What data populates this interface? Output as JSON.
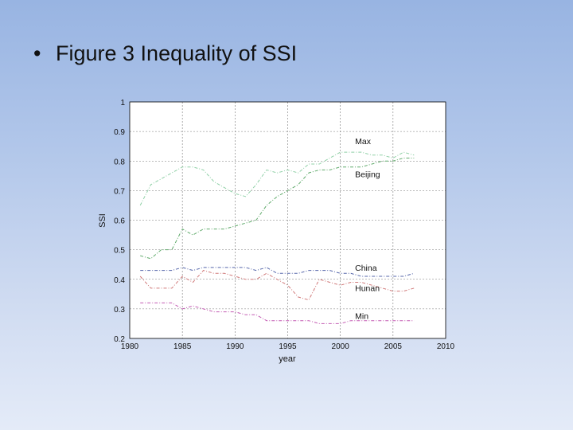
{
  "slide": {
    "bullet": "•",
    "title": "Figure 3 Inequality of SSI"
  },
  "chart_data": {
    "type": "line",
    "title": "",
    "xlabel": "year",
    "ylabel": "SSI",
    "xlim": [
      1980,
      2010
    ],
    "ylim": [
      0.2,
      1.0
    ],
    "xticks": [
      1980,
      1985,
      1990,
      1995,
      2000,
      2005,
      2010
    ],
    "yticks": [
      0.2,
      0.3,
      0.4,
      0.5,
      0.6,
      0.7,
      0.8,
      0.9,
      1.0
    ],
    "ytick_labels": [
      "0.2",
      "0.3",
      "0.4",
      "0.5",
      "0.6",
      "0.7",
      "0.8",
      "0.9",
      "1"
    ],
    "grid": true,
    "series": [
      {
        "name": "Max",
        "color": "#8fd0a6",
        "x": [
          1981,
          1982,
          1983,
          1984,
          1985,
          1986,
          1987,
          1988,
          1989,
          1990,
          1991,
          1992,
          1993,
          1994,
          1995,
          1996,
          1997,
          1998,
          1999,
          2000,
          2001,
          2002,
          2003,
          2004,
          2005,
          2006,
          2007
        ],
        "values": [
          0.65,
          0.72,
          0.74,
          0.76,
          0.78,
          0.78,
          0.77,
          0.73,
          0.71,
          0.69,
          0.68,
          0.72,
          0.77,
          0.76,
          0.77,
          0.76,
          0.79,
          0.79,
          0.81,
          0.83,
          0.83,
          0.83,
          0.82,
          0.82,
          0.81,
          0.83,
          0.82
        ]
      },
      {
        "name": "Beijing",
        "color": "#5faa6a",
        "x": [
          1981,
          1982,
          1983,
          1984,
          1985,
          1986,
          1987,
          1988,
          1989,
          1990,
          1991,
          1992,
          1993,
          1994,
          1995,
          1996,
          1997,
          1998,
          1999,
          2000,
          2001,
          2002,
          2003,
          2004,
          2005,
          2006,
          2007
        ],
        "values": [
          0.48,
          0.47,
          0.5,
          0.5,
          0.57,
          0.55,
          0.57,
          0.57,
          0.57,
          0.58,
          0.59,
          0.6,
          0.65,
          0.68,
          0.7,
          0.72,
          0.76,
          0.77,
          0.77,
          0.78,
          0.78,
          0.78,
          0.79,
          0.8,
          0.8,
          0.81,
          0.81
        ]
      },
      {
        "name": "China",
        "color": "#5566aa",
        "x": [
          1981,
          1982,
          1983,
          1984,
          1985,
          1986,
          1987,
          1988,
          1989,
          1990,
          1991,
          1992,
          1993,
          1994,
          1995,
          1996,
          1997,
          1998,
          1999,
          2000,
          2001,
          2002,
          2003,
          2004,
          2005,
          2006,
          2007
        ],
        "values": [
          0.43,
          0.43,
          0.43,
          0.43,
          0.44,
          0.43,
          0.44,
          0.44,
          0.44,
          0.44,
          0.44,
          0.43,
          0.44,
          0.42,
          0.42,
          0.42,
          0.43,
          0.43,
          0.43,
          0.42,
          0.42,
          0.41,
          0.41,
          0.41,
          0.41,
          0.41,
          0.42
        ]
      },
      {
        "name": "Hunan",
        "color": "#d07878",
        "x": [
          1981,
          1982,
          1983,
          1984,
          1985,
          1986,
          1987,
          1988,
          1989,
          1990,
          1991,
          1992,
          1993,
          1994,
          1995,
          1996,
          1997,
          1998,
          1999,
          2000,
          2001,
          2002,
          2003,
          2004,
          2005,
          2006,
          2007
        ],
        "values": [
          0.41,
          0.37,
          0.37,
          0.37,
          0.41,
          0.39,
          0.43,
          0.42,
          0.42,
          0.41,
          0.4,
          0.4,
          0.42,
          0.4,
          0.38,
          0.34,
          0.33,
          0.4,
          0.39,
          0.38,
          0.39,
          0.39,
          0.38,
          0.37,
          0.36,
          0.36,
          0.37
        ]
      },
      {
        "name": "Min",
        "color": "#c35cb3",
        "x": [
          1981,
          1982,
          1983,
          1984,
          1985,
          1986,
          1987,
          1988,
          1989,
          1990,
          1991,
          1992,
          1993,
          1994,
          1995,
          1996,
          1997,
          1998,
          1999,
          2000,
          2001,
          2002,
          2003,
          2004,
          2005,
          2006,
          2007
        ],
        "values": [
          0.32,
          0.32,
          0.32,
          0.32,
          0.3,
          0.31,
          0.3,
          0.29,
          0.29,
          0.29,
          0.28,
          0.28,
          0.26,
          0.26,
          0.26,
          0.26,
          0.26,
          0.25,
          0.25,
          0.25,
          0.26,
          0.26,
          0.26,
          0.26,
          0.26,
          0.26,
          0.26
        ]
      }
    ]
  }
}
